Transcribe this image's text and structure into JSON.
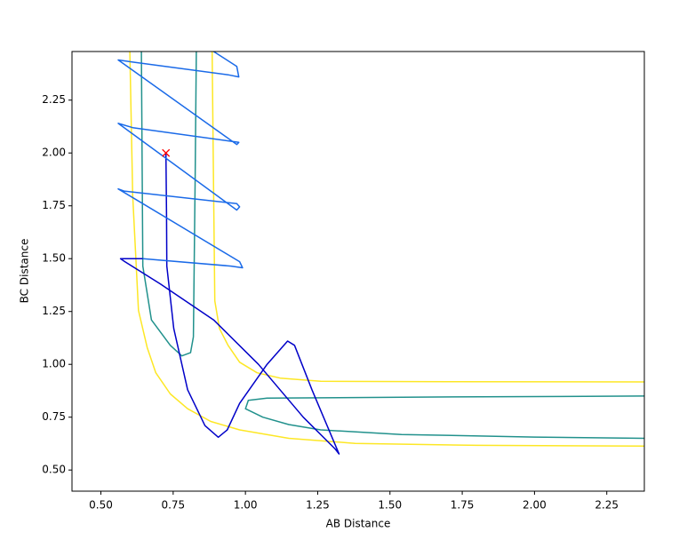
{
  "chart_data": {
    "type": "line",
    "xlabel": "AB Distance",
    "ylabel": "BC Distance",
    "xlim": [
      0.4,
      2.38
    ],
    "ylim": [
      0.4,
      2.48
    ],
    "xticks": [
      {
        "value": 0.5,
        "label": "0.50"
      },
      {
        "value": 0.75,
        "label": "0.75"
      },
      {
        "value": 1.0,
        "label": "1.00"
      },
      {
        "value": 1.25,
        "label": "1.25"
      },
      {
        "value": 1.5,
        "label": "1.50"
      },
      {
        "value": 1.75,
        "label": "1.75"
      },
      {
        "value": 2.0,
        "label": "2.00"
      },
      {
        "value": 2.25,
        "label": "2.25"
      }
    ],
    "yticks": [
      {
        "value": 0.5,
        "label": "0.50"
      },
      {
        "value": 0.75,
        "label": "0.75"
      },
      {
        "value": 1.0,
        "label": "1.00"
      },
      {
        "value": 1.25,
        "label": "1.25"
      },
      {
        "value": 1.5,
        "label": "1.50"
      },
      {
        "value": 1.75,
        "label": "1.75"
      },
      {
        "value": 2.0,
        "label": "2.00"
      },
      {
        "value": 2.25,
        "label": "2.25"
      }
    ],
    "series": [
      {
        "color": "#fde725",
        "x": [
          0.6,
          0.61,
          0.63,
          0.66,
          0.69,
          0.74,
          0.8,
          0.88,
          0.98,
          1.15,
          1.38,
          1.8,
          2.38
        ],
        "values": [
          2.48,
          1.8,
          1.255,
          1.08,
          0.96,
          0.86,
          0.79,
          0.73,
          0.69,
          0.65,
          0.626,
          0.617,
          0.613
        ]
      },
      {
        "color": "#fde725",
        "x": [
          0.885,
          0.89,
          0.894,
          0.91,
          0.94,
          0.98,
          1.04,
          1.12,
          1.26,
          1.7,
          2.38
        ],
        "values": [
          2.48,
          1.8,
          1.3,
          1.17,
          1.09,
          1.01,
          0.96,
          0.935,
          0.92,
          0.918,
          0.917
        ]
      },
      {
        "color": "#21918c",
        "x": [
          0.64,
          0.643,
          0.645,
          0.675,
          0.74,
          0.78,
          0.81,
          0.82,
          0.826,
          0.83,
          null,
          2.38,
          1.6,
          1.075,
          1.01,
          1.0,
          1.06,
          1.15,
          1.26,
          1.54,
          2.0,
          2.38
        ],
        "values": [
          2.48,
          1.9,
          1.465,
          1.21,
          1.09,
          1.04,
          1.055,
          1.13,
          1.885,
          2.48,
          null,
          0.85,
          0.845,
          0.84,
          0.83,
          0.79,
          0.75,
          0.715,
          0.69,
          0.668,
          0.656,
          0.65
        ]
      },
      {
        "color": "#0000c8",
        "x": [
          0.725,
          0.727,
          0.728,
          0.752,
          0.8,
          0.86,
          0.906,
          0.937,
          0.98,
          1.075,
          1.146,
          1.17,
          1.23,
          1.324,
          1.31,
          1.2,
          1.045,
          0.89,
          0.706,
          0.583,
          0.568,
          0.645
        ],
        "values": [
          2.0,
          1.7,
          1.465,
          1.17,
          0.88,
          0.71,
          0.655,
          0.69,
          0.815,
          1.0,
          1.11,
          1.09,
          0.88,
          0.576,
          0.6,
          0.75,
          1.0,
          1.21,
          1.38,
          1.486,
          1.5,
          1.5
        ]
      },
      {
        "color": "#1a6ae8",
        "x": [
          0.645,
          0.95,
          0.99,
          0.98,
          0.56,
          0.58,
          0.97,
          0.98,
          0.97,
          0.56,
          0.61,
          0.977,
          0.97,
          0.56,
          0.61,
          0.94,
          0.977,
          0.97,
          0.89
        ],
        "values": [
          1.5,
          1.465,
          1.457,
          1.486,
          1.83,
          1.82,
          1.76,
          1.745,
          1.73,
          2.14,
          2.12,
          2.05,
          2.04,
          2.44,
          2.43,
          2.37,
          2.36,
          2.41,
          2.48
        ]
      }
    ],
    "marker": {
      "x": 0.725,
      "y": 2.0,
      "color": "#ff0000"
    }
  }
}
